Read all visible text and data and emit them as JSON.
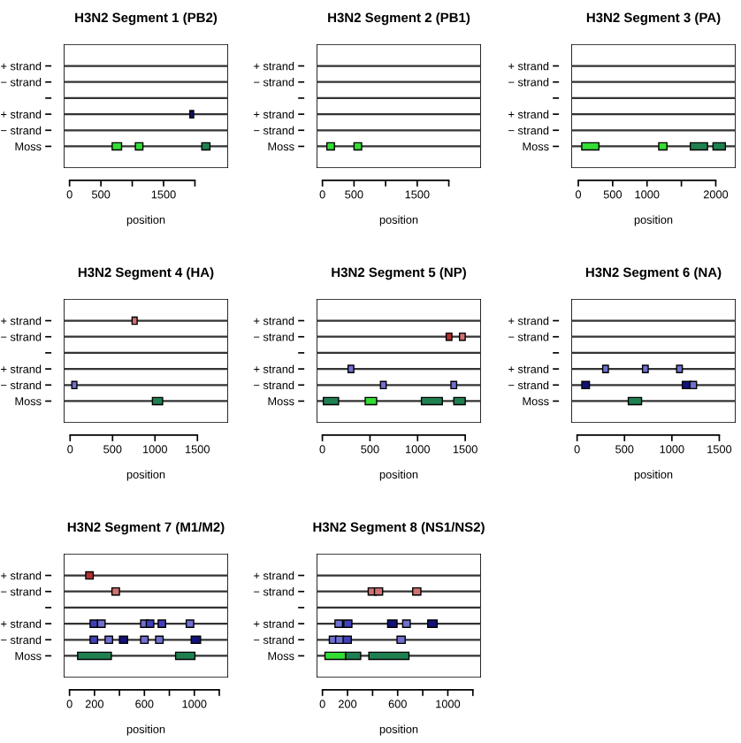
{
  "chart_data": [
    {
      "type": "bar",
      "orientation": "horizontal",
      "title": "H3N2 Segment 1 (PB2)",
      "xlabel": "position",
      "categories": [
        "+ strand",
        "− strand",
        null,
        "+ strand",
        "− strand",
        "Moss"
      ],
      "xlim": [
        -94,
        2530
      ],
      "xticks": [
        0,
        500,
        {
          "value": 1000,
          "label": null
        },
        1500,
        {
          "value": 2000,
          "label": null
        }
      ],
      "grid": "y",
      "series": [
        {
          "color": "#33dd33",
          "values": [
            null,
            null,
            null,
            null,
            null,
            150
          ],
          "base": [
            null,
            null,
            null,
            null,
            null,
            680
          ]
        },
        {
          "color": "#33dd33",
          "values": [
            null,
            null,
            null,
            null,
            null,
            120
          ],
          "base": [
            null,
            null,
            null,
            null,
            null,
            1050
          ]
        },
        {
          "color": "#1e8050",
          "values": [
            null,
            null,
            null,
            null,
            null,
            130
          ],
          "base": [
            null,
            null,
            null,
            null,
            null,
            2110
          ]
        },
        {
          "color": "#12127a",
          "values": [
            null,
            null,
            null,
            60,
            null,
            null
          ],
          "base": [
            null,
            null,
            null,
            1920,
            null,
            null
          ]
        }
      ]
    },
    {
      "type": "bar",
      "orientation": "horizontal",
      "title": "H3N2 Segment 2 (PB1)",
      "xlabel": "position",
      "categories": [
        "+ strand",
        "− strand",
        null,
        "+ strand",
        "− strand",
        "Moss"
      ],
      "xlim": [
        -93,
        2510
      ],
      "xticks": [
        0,
        500,
        {
          "value": 1000,
          "label": null
        },
        1500,
        {
          "value": 2000,
          "label": null
        }
      ],
      "grid": "y",
      "series": [
        {
          "color": "#33dd33",
          "values": [
            null,
            null,
            null,
            null,
            null,
            120
          ],
          "base": [
            null,
            null,
            null,
            null,
            null,
            70
          ]
        },
        {
          "color": "#33dd33",
          "values": [
            null,
            null,
            null,
            null,
            null,
            120
          ],
          "base": [
            null,
            null,
            null,
            null,
            null,
            500
          ]
        }
      ]
    },
    {
      "type": "bar",
      "orientation": "horizontal",
      "title": "H3N2 Segment 3 (PA)",
      "xlabel": "position",
      "categories": [
        "+ strand",
        "− strand",
        null,
        "+ strand",
        "− strand",
        "Moss"
      ],
      "xlim": [
        -103,
        2290
      ],
      "xticks": [
        0,
        500,
        1000,
        {
          "value": 1500,
          "label": null
        },
        2000
      ],
      "grid": "y",
      "series": [
        {
          "color": "#33dd33",
          "values": [
            null,
            null,
            null,
            null,
            null,
            250
          ],
          "base": [
            null,
            null,
            null,
            null,
            null,
            50
          ]
        },
        {
          "color": "#33dd33",
          "values": [
            null,
            null,
            null,
            null,
            null,
            120
          ],
          "base": [
            null,
            null,
            null,
            null,
            null,
            1170
          ]
        },
        {
          "color": "#1e8050",
          "values": [
            null,
            null,
            null,
            null,
            null,
            250
          ],
          "base": [
            null,
            null,
            null,
            null,
            null,
            1630
          ]
        },
        {
          "color": "#1e8050",
          "values": [
            null,
            null,
            null,
            null,
            null,
            180
          ],
          "base": [
            null,
            null,
            null,
            null,
            null,
            1960
          ]
        }
      ]
    },
    {
      "type": "bar",
      "orientation": "horizontal",
      "title": "H3N2 Segment 4 (HA)",
      "xlabel": "position",
      "categories": [
        "+ strand",
        "− strand",
        null,
        "+ strand",
        "− strand",
        "Moss"
      ],
      "xlim": [
        -76,
        1862
      ],
      "xticks": [
        0,
        500,
        1000,
        1500
      ],
      "grid": "y",
      "series": [
        {
          "color": "#d07070",
          "values": [
            60,
            null,
            null,
            null,
            null,
            null
          ],
          "base": [
            730,
            null,
            null,
            null,
            null,
            null
          ]
        },
        {
          "color": "#7070d0",
          "values": [
            null,
            null,
            null,
            null,
            60,
            null
          ],
          "base": [
            null,
            null,
            null,
            null,
            20,
            null
          ]
        },
        {
          "color": "#1e8050",
          "values": [
            null,
            null,
            null,
            null,
            null,
            120
          ],
          "base": [
            null,
            null,
            null,
            null,
            null,
            970
          ]
        }
      ]
    },
    {
      "type": "bar",
      "orientation": "horizontal",
      "title": "H3N2 Segment 5 (NP)",
      "xlabel": "position",
      "categories": [
        "+ strand",
        "− strand",
        null,
        "+ strand",
        "− strand",
        "Moss"
      ],
      "xlim": [
        -61,
        1666
      ],
      "xticks": [
        0,
        500,
        1000,
        1500
      ],
      "grid": "y",
      "series": [
        {
          "color": "#b03030",
          "values": [
            null,
            60,
            null,
            null,
            null,
            null
          ],
          "base": [
            null,
            1300,
            null,
            null,
            null,
            null
          ]
        },
        {
          "color": "#d07070",
          "values": [
            null,
            60,
            null,
            null,
            null,
            null
          ],
          "base": [
            null,
            1440,
            null,
            null,
            null,
            null
          ]
        },
        {
          "color": "#7070d0",
          "values": [
            null,
            null,
            null,
            60,
            null,
            null
          ],
          "base": [
            null,
            null,
            null,
            270,
            null,
            null
          ]
        },
        {
          "color": "#7070d0",
          "values": [
            null,
            null,
            null,
            null,
            60,
            null
          ],
          "base": [
            null,
            null,
            null,
            null,
            610,
            null
          ]
        },
        {
          "color": "#7070d0",
          "values": [
            null,
            null,
            null,
            null,
            60,
            null
          ],
          "base": [
            null,
            null,
            null,
            null,
            1350,
            null
          ]
        },
        {
          "color": "#1e8050",
          "values": [
            null,
            null,
            null,
            null,
            null,
            160
          ],
          "base": [
            null,
            null,
            null,
            null,
            null,
            10
          ]
        },
        {
          "color": "#33dd33",
          "values": [
            null,
            null,
            null,
            null,
            null,
            120
          ],
          "base": [
            null,
            null,
            null,
            null,
            null,
            450
          ]
        },
        {
          "color": "#1e8050",
          "values": [
            null,
            null,
            null,
            null,
            null,
            220
          ],
          "base": [
            null,
            null,
            null,
            null,
            null,
            1040
          ]
        },
        {
          "color": "#1e8050",
          "values": [
            null,
            null,
            null,
            null,
            null,
            120
          ],
          "base": [
            null,
            null,
            null,
            null,
            null,
            1380
          ]
        }
      ]
    },
    {
      "type": "bar",
      "orientation": "horizontal",
      "title": "H3N2 Segment 6 (NA)",
      "xlabel": "position",
      "categories": [
        "+ strand",
        "− strand",
        null,
        "+ strand",
        "− strand",
        "Moss"
      ],
      "xlim": [
        -62,
        1673
      ],
      "xticks": [
        0,
        500,
        1000,
        1500
      ],
      "grid": "y",
      "series": [
        {
          "color": "#7070d0",
          "values": [
            null,
            null,
            null,
            60,
            null,
            null
          ],
          "base": [
            null,
            null,
            null,
            270,
            null,
            null
          ]
        },
        {
          "color": "#7070d0",
          "values": [
            null,
            null,
            null,
            60,
            null,
            null
          ],
          "base": [
            null,
            null,
            null,
            690,
            null,
            null
          ]
        },
        {
          "color": "#7070d0",
          "values": [
            null,
            null,
            null,
            60,
            null,
            null
          ],
          "base": [
            null,
            null,
            null,
            1050,
            null,
            null
          ]
        },
        {
          "color": "#12127a",
          "values": [
            null,
            null,
            null,
            null,
            80,
            null
          ],
          "base": [
            null,
            null,
            null,
            null,
            50,
            null
          ]
        },
        {
          "color": "#12127a",
          "values": [
            null,
            null,
            null,
            null,
            90,
            null
          ],
          "base": [
            null,
            null,
            null,
            null,
            1110,
            null
          ]
        },
        {
          "color": "#7070d0",
          "values": [
            null,
            null,
            null,
            null,
            70,
            null
          ],
          "base": [
            null,
            null,
            null,
            null,
            1190,
            null
          ]
        },
        {
          "color": "#1e8050",
          "values": [
            null,
            null,
            null,
            null,
            null,
            140
          ],
          "base": [
            null,
            null,
            null,
            null,
            null,
            540
          ]
        }
      ]
    },
    {
      "type": "bar",
      "orientation": "horizontal",
      "title": "H3N2 Segment 7 (M1/M2)",
      "xlabel": "position",
      "categories": [
        "+ strand",
        "− strand",
        null,
        "+ strand",
        "− strand",
        "Moss"
      ],
      "xlim": [
        -47,
        1271
      ],
      "xticks": [
        0,
        200,
        {
          "value": 400,
          "label": null
        },
        600,
        {
          "value": 800,
          "label": null
        },
        1000,
        {
          "value": 1200,
          "label": null
        }
      ],
      "grid": "y",
      "series": [
        {
          "color": "#b03030",
          "values": [
            60,
            null,
            null,
            null,
            null,
            null
          ],
          "base": [
            130,
            null,
            null,
            null,
            null,
            null
          ]
        },
        {
          "color": "#d07070",
          "values": [
            null,
            60,
            null,
            null,
            null,
            null
          ],
          "base": [
            null,
            340,
            null,
            null,
            null,
            null
          ]
        },
        {
          "color": "#4040b8",
          "values": [
            null,
            null,
            null,
            60,
            null,
            null
          ],
          "base": [
            null,
            null,
            null,
            165,
            null,
            null
          ]
        },
        {
          "color": "#7070d0",
          "values": [
            null,
            null,
            null,
            60,
            null,
            null
          ],
          "base": [
            null,
            null,
            null,
            225,
            null,
            null
          ]
        },
        {
          "color": "#7070d0",
          "values": [
            null,
            null,
            null,
            60,
            null,
            null
          ],
          "base": [
            null,
            null,
            null,
            570,
            null,
            null
          ]
        },
        {
          "color": "#4040b8",
          "values": [
            null,
            null,
            null,
            60,
            null,
            null
          ],
          "base": [
            null,
            null,
            null,
            615,
            null,
            null
          ]
        },
        {
          "color": "#4040b8",
          "values": [
            null,
            null,
            null,
            60,
            null,
            null
          ],
          "base": [
            null,
            null,
            null,
            710,
            null,
            null
          ]
        },
        {
          "color": "#7070d0",
          "values": [
            null,
            null,
            null,
            60,
            null,
            null
          ],
          "base": [
            null,
            null,
            null,
            935,
            null,
            null
          ]
        },
        {
          "color": "#4040b8",
          "values": [
            null,
            null,
            null,
            null,
            60,
            null
          ],
          "base": [
            null,
            null,
            null,
            null,
            165,
            null
          ]
        },
        {
          "color": "#7070d0",
          "values": [
            null,
            null,
            null,
            null,
            60,
            null
          ],
          "base": [
            null,
            null,
            null,
            null,
            285,
            null
          ]
        },
        {
          "color": "#12127a",
          "values": [
            null,
            null,
            null,
            null,
            65,
            null
          ],
          "base": [
            null,
            null,
            null,
            null,
            400,
            null
          ]
        },
        {
          "color": "#7070d0",
          "values": [
            null,
            null,
            null,
            null,
            60,
            null
          ],
          "base": [
            null,
            null,
            null,
            null,
            570,
            null
          ]
        },
        {
          "color": "#7070d0",
          "values": [
            null,
            null,
            null,
            null,
            60,
            null
          ],
          "base": [
            null,
            null,
            null,
            null,
            690,
            null
          ]
        },
        {
          "color": "#12127a",
          "values": [
            null,
            null,
            null,
            null,
            75,
            null
          ],
          "base": [
            null,
            null,
            null,
            null,
            975,
            null
          ]
        },
        {
          "color": "#1e8050",
          "values": [
            null,
            null,
            null,
            null,
            null,
            270
          ],
          "base": [
            null,
            null,
            null,
            null,
            null,
            65
          ]
        },
        {
          "color": "#1e8050",
          "values": [
            null,
            null,
            null,
            null,
            null,
            155
          ],
          "base": [
            null,
            null,
            null,
            null,
            null,
            850
          ]
        }
      ]
    },
    {
      "type": "bar",
      "orientation": "horizontal",
      "title": "H3N2 Segment 8 (NS1/NS2)",
      "xlabel": "position",
      "categories": [
        "+ strand",
        "− strand",
        null,
        "+ strand",
        "− strand",
        "Moss"
      ],
      "xlim": [
        -47,
        1265
      ],
      "xticks": [
        0,
        200,
        {
          "value": 400,
          "label": null
        },
        600,
        {
          "value": 800,
          "label": null
        },
        1000,
        {
          "value": 1200,
          "label": null
        }
      ],
      "grid": "y",
      "series": [
        {
          "color": "#d07070",
          "values": [
            null,
            65,
            null,
            null,
            null,
            null
          ],
          "base": [
            null,
            365,
            null,
            null,
            null,
            null
          ]
        },
        {
          "color": "#d07070",
          "values": [
            null,
            65,
            null,
            null,
            null,
            null
          ],
          "base": [
            null,
            415,
            null,
            null,
            null,
            null
          ]
        },
        {
          "color": "#d07070",
          "values": [
            null,
            65,
            null,
            null,
            null,
            null
          ],
          "base": [
            null,
            720,
            null,
            null,
            null,
            null
          ]
        },
        {
          "color": "#7070d0",
          "values": [
            null,
            null,
            null,
            60,
            null,
            null
          ],
          "base": [
            null,
            null,
            null,
            100,
            null,
            null
          ]
        },
        {
          "color": "#4040b8",
          "values": [
            null,
            null,
            null,
            65,
            null,
            null
          ],
          "base": [
            null,
            null,
            null,
            170,
            null,
            null
          ]
        },
        {
          "color": "#12127a",
          "values": [
            null,
            null,
            null,
            75,
            null,
            null
          ],
          "base": [
            null,
            null,
            null,
            520,
            null,
            null
          ]
        },
        {
          "color": "#7070d0",
          "values": [
            null,
            null,
            null,
            60,
            null,
            null
          ],
          "base": [
            null,
            null,
            null,
            640,
            null,
            null
          ]
        },
        {
          "color": "#12127a",
          "values": [
            null,
            null,
            null,
            75,
            null,
            null
          ],
          "base": [
            null,
            null,
            null,
            840,
            null,
            null
          ]
        },
        {
          "color": "#7070d0",
          "values": [
            null,
            null,
            null,
            null,
            60,
            null
          ],
          "base": [
            null,
            null,
            null,
            null,
            55,
            null
          ]
        },
        {
          "color": "#7070d0",
          "values": [
            null,
            null,
            null,
            null,
            65,
            null
          ],
          "base": [
            null,
            null,
            null,
            null,
            105,
            null
          ]
        },
        {
          "color": "#4040b8",
          "values": [
            null,
            null,
            null,
            null,
            65,
            null
          ],
          "base": [
            null,
            null,
            null,
            null,
            165,
            null
          ]
        },
        {
          "color": "#7070d0",
          "values": [
            null,
            null,
            null,
            null,
            65,
            null
          ],
          "base": [
            null,
            null,
            null,
            null,
            595,
            null
          ]
        },
        {
          "color": "#33dd33",
          "values": [
            null,
            null,
            null,
            null,
            null,
            165
          ],
          "base": [
            null,
            null,
            null,
            null,
            null,
            20
          ]
        },
        {
          "color": "#1e8050",
          "values": [
            null,
            null,
            null,
            null,
            null,
            120
          ],
          "base": [
            null,
            null,
            null,
            null,
            null,
            185
          ]
        },
        {
          "color": "#1e8050",
          "values": [
            null,
            null,
            null,
            null,
            null,
            320
          ],
          "base": [
            null,
            null,
            null,
            null,
            null,
            370
          ]
        }
      ]
    }
  ]
}
